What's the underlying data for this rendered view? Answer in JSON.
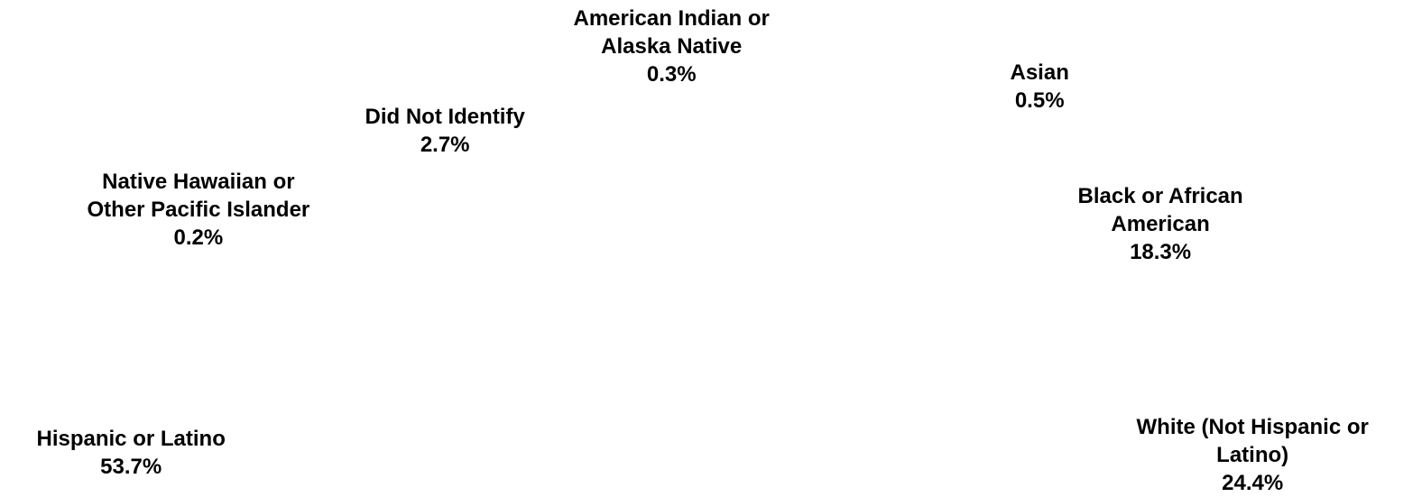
{
  "chart_data": {
    "type": "pie",
    "title": "",
    "slices": [
      {
        "label_lines": [
          "American Indian or",
          "Alaska Native"
        ],
        "value": 0.3,
        "value_label": "0.3%"
      },
      {
        "label_lines": [
          "Asian"
        ],
        "value": 0.5,
        "value_label": "0.5%"
      },
      {
        "label_lines": [
          "Black or African",
          "American"
        ],
        "value": 18.3,
        "value_label": "18.3%"
      },
      {
        "label_lines": [
          "White (Not Hispanic or",
          "Latino)"
        ],
        "value": 24.4,
        "value_label": "24.4%"
      },
      {
        "label_lines": [
          "Hispanic or Latino"
        ],
        "value": 53.7,
        "value_label": "53.7%"
      },
      {
        "label_lines": [
          "Native Hawaiian or",
          "Other Pacific Islander"
        ],
        "value": 0.2,
        "value_label": "0.2%"
      },
      {
        "label_lines": [
          "Did Not Identify"
        ],
        "value": 2.7,
        "value_label": "2.7%"
      }
    ],
    "slice_fill": "#ffffff",
    "label_color": "#000000"
  }
}
